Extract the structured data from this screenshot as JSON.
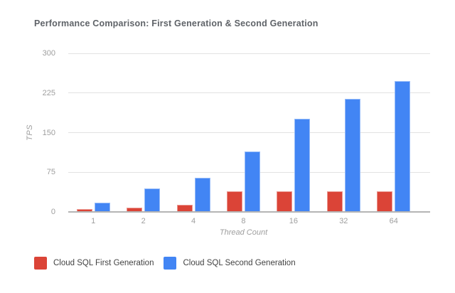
{
  "chart_data": {
    "type": "bar",
    "title": "Performance Comparison: First Generation & Second Generation",
    "xlabel": "Thread Count",
    "ylabel": "TPS",
    "categories": [
      "1",
      "2",
      "4",
      "8",
      "16",
      "32",
      "64"
    ],
    "series": [
      {
        "name": "Cloud SQL First Generation",
        "color": "#db4437",
        "values": [
          5,
          8,
          13,
          39,
          39,
          39,
          39
        ]
      },
      {
        "name": "Cloud SQL Second Generation",
        "color": "#4285f4",
        "values": [
          18,
          44,
          64,
          115,
          176,
          214,
          248
        ]
      }
    ],
    "ylim": [
      0,
      300
    ],
    "yticks": [
      0,
      75,
      150,
      225,
      300
    ],
    "grid": true,
    "legend_position": "bottom"
  },
  "colors": {
    "series_first_gen": "#db4437",
    "series_second_gen": "#4285f4",
    "title_text": "#5f6368",
    "axis_text": "#9e9e9e",
    "legend_text": "#424242",
    "gridline": "#e2e2e2",
    "baseline": "#b5b5b5",
    "background": "#ffffff"
  }
}
